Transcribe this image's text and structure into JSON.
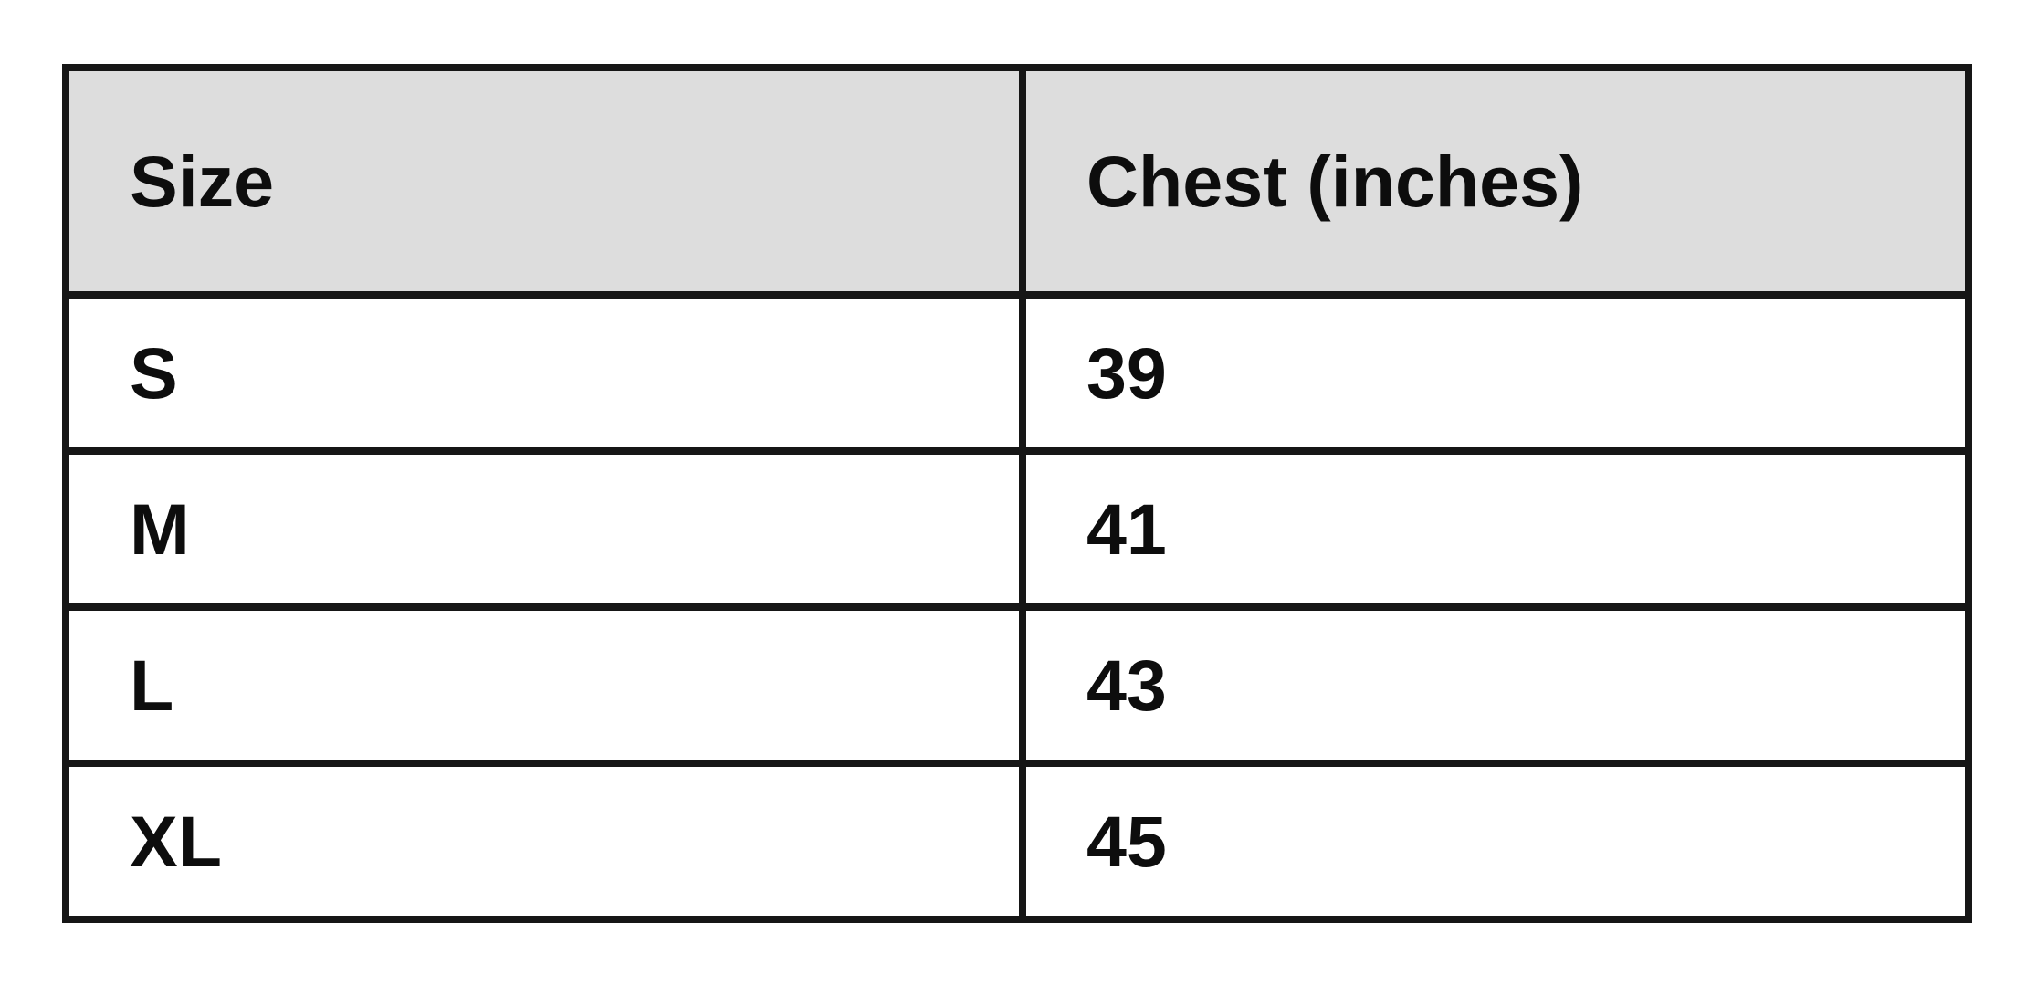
{
  "table": {
    "columns": [
      {
        "label": "Size"
      },
      {
        "label": "Chest (inches)"
      }
    ],
    "rows": [
      {
        "size": "S",
        "chest": "39"
      },
      {
        "size": "M",
        "chest": "41"
      },
      {
        "size": "L",
        "chest": "43"
      },
      {
        "size": "XL",
        "chest": "45"
      }
    ],
    "colors": {
      "header_bg": "#dddddd",
      "row_bg": "#ffffff",
      "border": "#161616",
      "text": "#0d0d0d"
    }
  },
  "chart_data": {
    "type": "table",
    "title": "",
    "columns": [
      "Size",
      "Chest (inches)"
    ],
    "rows": [
      [
        "S",
        39
      ],
      [
        "M",
        41
      ],
      [
        "L",
        43
      ],
      [
        "XL",
        45
      ]
    ]
  }
}
